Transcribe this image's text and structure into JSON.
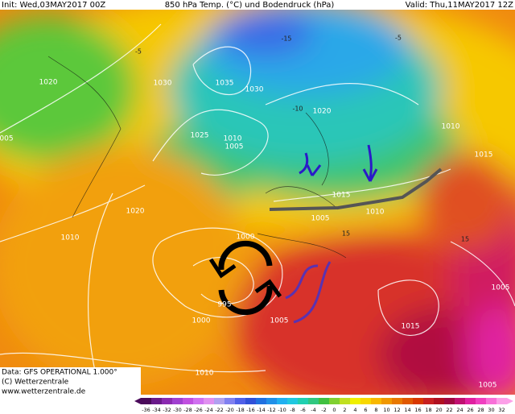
{
  "header": {
    "init": "Init: Wed,03MAY2017 00Z",
    "title": "850 hPa Temp. (°C) und Bodendruck (hPa)",
    "valid": "Valid: Thu,11MAY2017 12Z"
  },
  "footer": {
    "data": "Data: GFS OPERATIONAL 1.000°",
    "copyright": "(C) Wetterzentrale",
    "url": "www.wetterzentrale.de"
  },
  "isobar_labels": [
    "1020",
    "1030",
    "1035",
    "1030",
    "1020",
    "1025",
    "1010",
    "1005",
    "005",
    "1020",
    "1010",
    "1015",
    "1005",
    "1010",
    "1010",
    "1015",
    "1000",
    "1000",
    "995",
    "1005",
    "1015",
    "1005",
    "1010",
    "1005"
  ],
  "temperature_labels": [
    "-15",
    "-10",
    "-5",
    "-5",
    "15",
    "15"
  ],
  "scale": {
    "ticks": [
      -36,
      -34,
      -32,
      -30,
      -28,
      -26,
      -24,
      -22,
      -20,
      -18,
      -16,
      -14,
      -12,
      -10,
      -8,
      -6,
      -4,
      -2,
      0,
      2,
      4,
      6,
      8,
      10,
      12,
      14,
      16,
      18,
      20,
      22,
      24,
      26,
      28,
      30,
      32
    ]
  }
}
